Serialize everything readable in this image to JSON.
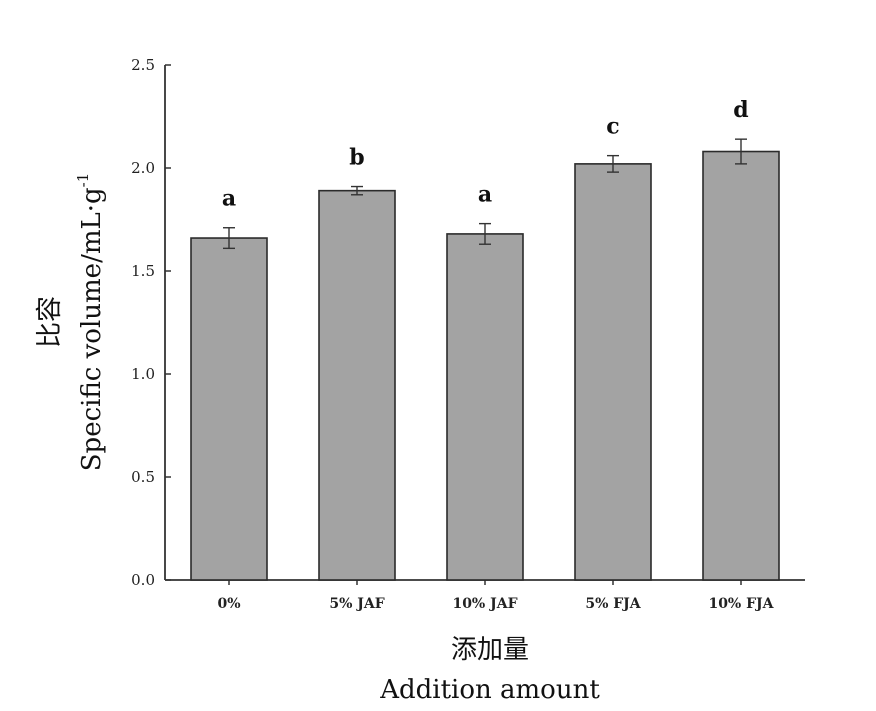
{
  "chart_data": {
    "type": "bar",
    "title": "",
    "categories": [
      "0%",
      "5% JAF",
      "10% JAF",
      "5% FJA",
      "10% FJA"
    ],
    "values": [
      1.66,
      1.89,
      1.68,
      2.02,
      2.08
    ],
    "errors": [
      0.05,
      0.02,
      0.05,
      0.04,
      0.06
    ],
    "significance": [
      "a",
      "b",
      "a",
      "c",
      "d"
    ],
    "ylim": [
      0,
      2.5
    ],
    "yticks": [
      0.0,
      0.5,
      1.0,
      1.5,
      2.0,
      2.5
    ],
    "ytick_labels": [
      "0.0",
      "0.5",
      "1.0",
      "1.5",
      "2.0",
      "2.5"
    ],
    "ylabel_cn": "比容",
    "ylabel_en": "Specific volume/mL·g",
    "ylabel_sup": "-1",
    "xlabel_cn": "添加量",
    "xlabel_en": "Addition amount",
    "grid": false,
    "colors": {
      "bar_fill": "#a3a3a3",
      "bar_edge": "#2b2b2b",
      "axis": "#333333"
    }
  }
}
